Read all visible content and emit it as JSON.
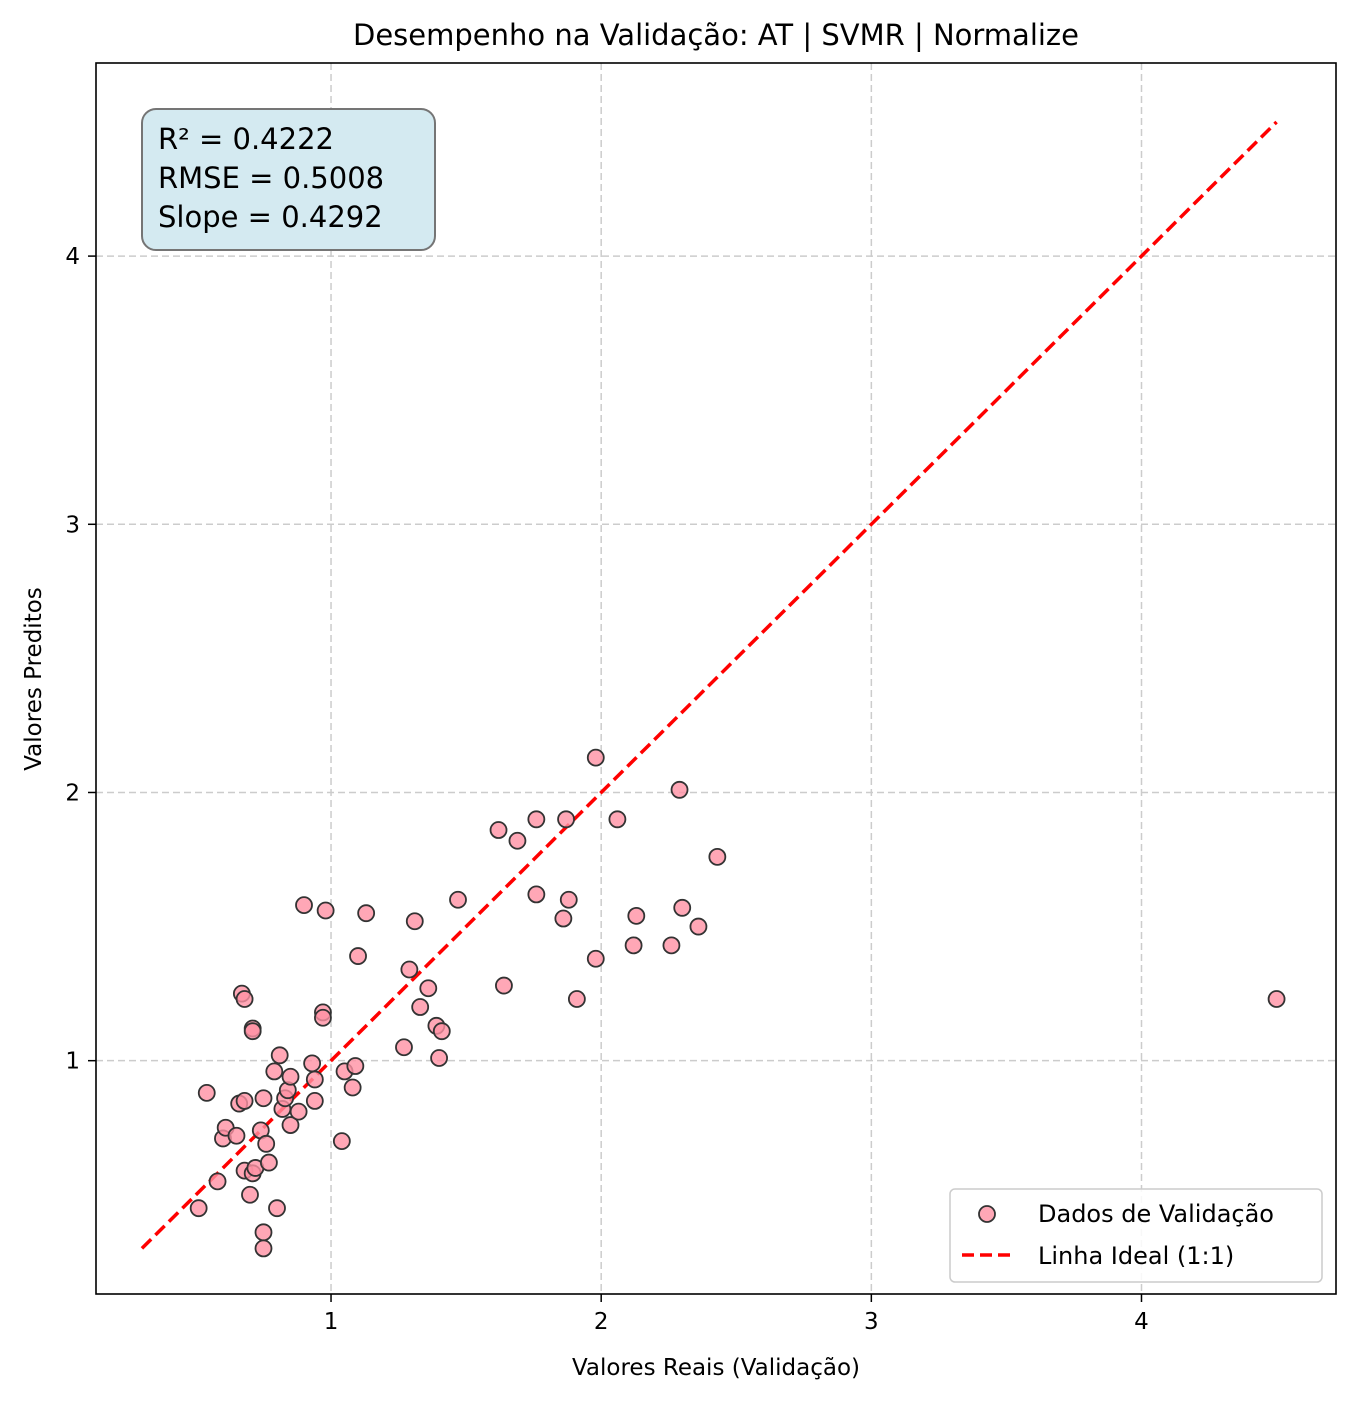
{
  "chart_data": {
    "type": "scatter",
    "title": "Desempenho na Validação: AT | SVMR | Normalize",
    "xlabel": "Valores Reais (Validação)",
    "ylabel": "Valores Preditos",
    "xlim": [
      0.13,
      4.72
    ],
    "ylim": [
      0.13,
      4.72
    ],
    "xticks": [
      1,
      2,
      3,
      4
    ],
    "yticks": [
      1,
      2,
      3,
      4
    ],
    "grid": true,
    "legend_position": "lower-right",
    "stats": {
      "r2": "R² = 0.4222",
      "rmse": "RMSE = 0.5008",
      "slope": "Slope = 0.4292"
    },
    "series": [
      {
        "name": "Dados de Validação",
        "kind": "scatter",
        "color": "#ff91a4",
        "edge_color": "#333333",
        "points": [
          [
            0.51,
            0.45
          ],
          [
            0.54,
            0.88
          ],
          [
            0.58,
            0.55
          ],
          [
            0.6,
            0.71
          ],
          [
            0.61,
            0.75
          ],
          [
            0.65,
            0.72
          ],
          [
            0.66,
            0.84
          ],
          [
            0.67,
            1.25
          ],
          [
            0.68,
            1.23
          ],
          [
            0.68,
            0.85
          ],
          [
            0.68,
            0.59
          ],
          [
            0.7,
            0.5
          ],
          [
            0.71,
            1.12
          ],
          [
            0.71,
            1.11
          ],
          [
            0.71,
            0.58
          ],
          [
            0.72,
            0.6
          ],
          [
            0.74,
            0.74
          ],
          [
            0.75,
            0.86
          ],
          [
            0.75,
            0.36
          ],
          [
            0.75,
            0.3
          ],
          [
            0.76,
            0.69
          ],
          [
            0.77,
            0.62
          ],
          [
            0.79,
            0.96
          ],
          [
            0.8,
            0.45
          ],
          [
            0.81,
            1.02
          ],
          [
            0.82,
            0.82
          ],
          [
            0.83,
            0.86
          ],
          [
            0.84,
            0.89
          ],
          [
            0.85,
            0.94
          ],
          [
            0.85,
            0.76
          ],
          [
            0.88,
            0.81
          ],
          [
            0.9,
            1.58
          ],
          [
            0.93,
            0.99
          ],
          [
            0.94,
            0.93
          ],
          [
            0.94,
            0.85
          ],
          [
            0.97,
            1.18
          ],
          [
            0.97,
            1.16
          ],
          [
            0.98,
            1.56
          ],
          [
            1.04,
            0.7
          ],
          [
            1.05,
            0.96
          ],
          [
            1.08,
            0.9
          ],
          [
            1.09,
            0.98
          ],
          [
            1.1,
            1.39
          ],
          [
            1.13,
            1.55
          ],
          [
            1.27,
            1.05
          ],
          [
            1.29,
            1.34
          ],
          [
            1.31,
            1.52
          ],
          [
            1.33,
            1.2
          ],
          [
            1.36,
            1.27
          ],
          [
            1.39,
            1.13
          ],
          [
            1.4,
            1.01
          ],
          [
            1.41,
            1.11
          ],
          [
            1.47,
            1.6
          ],
          [
            1.62,
            1.86
          ],
          [
            1.64,
            1.28
          ],
          [
            1.69,
            1.82
          ],
          [
            1.76,
            1.9
          ],
          [
            1.76,
            1.62
          ],
          [
            1.86,
            1.53
          ],
          [
            1.87,
            1.9
          ],
          [
            1.88,
            1.6
          ],
          [
            1.91,
            1.23
          ],
          [
            1.98,
            2.13
          ],
          [
            1.98,
            1.38
          ],
          [
            2.06,
            1.9
          ],
          [
            2.12,
            1.43
          ],
          [
            2.13,
            1.54
          ],
          [
            2.26,
            1.43
          ],
          [
            2.29,
            2.01
          ],
          [
            2.3,
            1.57
          ],
          [
            2.36,
            1.5
          ],
          [
            2.43,
            1.76
          ],
          [
            4.5,
            1.23
          ]
        ]
      },
      {
        "name": "Linha Ideal (1:1)",
        "kind": "line",
        "color": "#ff0000",
        "dash": true,
        "points": [
          [
            0.3,
            0.3
          ],
          [
            4.5,
            4.5
          ]
        ]
      }
    ]
  }
}
